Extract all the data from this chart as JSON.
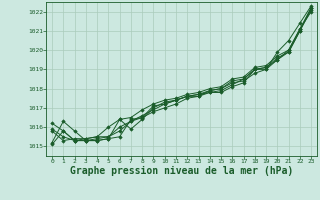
{
  "background_color": "#cce8e0",
  "grid_color": "#aaccbb",
  "line_color": "#1a5c2a",
  "marker_color": "#1a5c2a",
  "xlabel": "Graphe pression niveau de la mer (hPa)",
  "xlabel_fontsize": 7,
  "ylim": [
    1014.5,
    1022.5
  ],
  "xlim": [
    -0.5,
    23.5
  ],
  "yticks": [
    1015,
    1016,
    1017,
    1018,
    1019,
    1020,
    1021,
    1022
  ],
  "xticks": [
    0,
    1,
    2,
    3,
    4,
    5,
    6,
    7,
    8,
    9,
    10,
    11,
    12,
    13,
    14,
    15,
    16,
    17,
    18,
    19,
    20,
    21,
    22,
    23
  ],
  "series": [
    [
      1015.2,
      1016.3,
      1015.8,
      1015.3,
      1015.3,
      1015.4,
      1015.5,
      1016.4,
      1016.5,
      1016.8,
      1017.0,
      1017.2,
      1017.5,
      1017.6,
      1017.8,
      1017.8,
      1018.1,
      1018.3,
      1019.0,
      1019.0,
      1019.5,
      1019.9,
      1021.0,
      1022.1
    ],
    [
      1015.1,
      1015.8,
      1015.3,
      1015.3,
      1015.3,
      1015.4,
      1016.4,
      1015.9,
      1016.4,
      1017.0,
      1017.3,
      1017.4,
      1017.6,
      1017.7,
      1017.8,
      1017.9,
      1018.2,
      1018.5,
      1019.0,
      1019.1,
      1019.5,
      1020.0,
      1021.1,
      1022.0
    ],
    [
      1015.8,
      1015.3,
      1015.4,
      1015.4,
      1015.5,
      1015.5,
      1015.8,
      1016.3,
      1016.6,
      1016.9,
      1017.2,
      1017.4,
      1017.6,
      1017.6,
      1017.9,
      1018.0,
      1018.3,
      1018.4,
      1018.8,
      1019.0,
      1019.9,
      1020.5,
      1021.4,
      1022.3
    ],
    [
      1016.2,
      1015.8,
      1015.3,
      1015.3,
      1015.4,
      1015.5,
      1016.0,
      1016.3,
      1016.5,
      1017.1,
      1017.2,
      1017.4,
      1017.6,
      1017.7,
      1017.9,
      1018.0,
      1018.4,
      1018.5,
      1019.0,
      1019.1,
      1019.6,
      1019.9,
      1021.0,
      1022.2
    ],
    [
      1015.9,
      1015.5,
      1015.3,
      1015.4,
      1015.5,
      1016.0,
      1016.4,
      1016.5,
      1016.9,
      1017.2,
      1017.4,
      1017.5,
      1017.7,
      1017.8,
      1018.0,
      1018.1,
      1018.5,
      1018.6,
      1019.1,
      1019.2,
      1019.7,
      1020.0,
      1021.1,
      1022.2
    ]
  ]
}
